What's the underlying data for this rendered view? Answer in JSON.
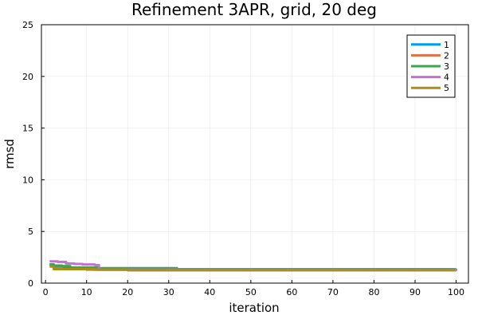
{
  "chart_data": {
    "type": "line",
    "title": "Refinement 3APR, grid, 20 deg",
    "xlabel": "iteration",
    "ylabel": "rmsd",
    "xlim": [
      -1,
      103
    ],
    "ylim": [
      0,
      25
    ],
    "xticks": [
      0,
      10,
      20,
      30,
      40,
      50,
      60,
      70,
      80,
      90,
      100
    ],
    "yticks": [
      0,
      5,
      10,
      15,
      20,
      25
    ],
    "grid": true,
    "legend_position": "top-right",
    "series": [
      {
        "name": "1",
        "color": "#009AFA",
        "points": [
          [
            1,
            1.8
          ],
          [
            2,
            1.6
          ],
          [
            3,
            1.5
          ],
          [
            6,
            1.4
          ],
          [
            12,
            1.3
          ],
          [
            20,
            1.25
          ],
          [
            100,
            1.2
          ]
        ]
      },
      {
        "name": "2",
        "color": "#E36F47",
        "points": [
          [
            1,
            1.75
          ],
          [
            2,
            1.45
          ],
          [
            4,
            1.35
          ],
          [
            10,
            1.3
          ],
          [
            20,
            1.25
          ],
          [
            100,
            1.25
          ]
        ]
      },
      {
        "name": "3",
        "color": "#3EA44E",
        "points": [
          [
            1,
            1.8
          ],
          [
            2,
            1.7
          ],
          [
            4,
            1.65
          ],
          [
            6,
            1.5
          ],
          [
            13,
            1.45
          ],
          [
            20,
            1.45
          ],
          [
            32,
            1.35
          ],
          [
            100,
            1.35
          ]
        ]
      },
      {
        "name": "4",
        "color": "#C371D2",
        "points": [
          [
            1,
            2.1
          ],
          [
            3,
            2.05
          ],
          [
            5,
            1.9
          ],
          [
            7,
            1.85
          ],
          [
            9,
            1.8
          ],
          [
            12,
            1.75
          ],
          [
            13,
            1.3
          ],
          [
            100,
            1.25
          ]
        ]
      },
      {
        "name": "5",
        "color": "#AC8D18",
        "points": [
          [
            1,
            1.6
          ],
          [
            2,
            1.35
          ],
          [
            5,
            1.35
          ],
          [
            12,
            1.3
          ],
          [
            20,
            1.25
          ],
          [
            100,
            1.25
          ]
        ]
      }
    ]
  }
}
